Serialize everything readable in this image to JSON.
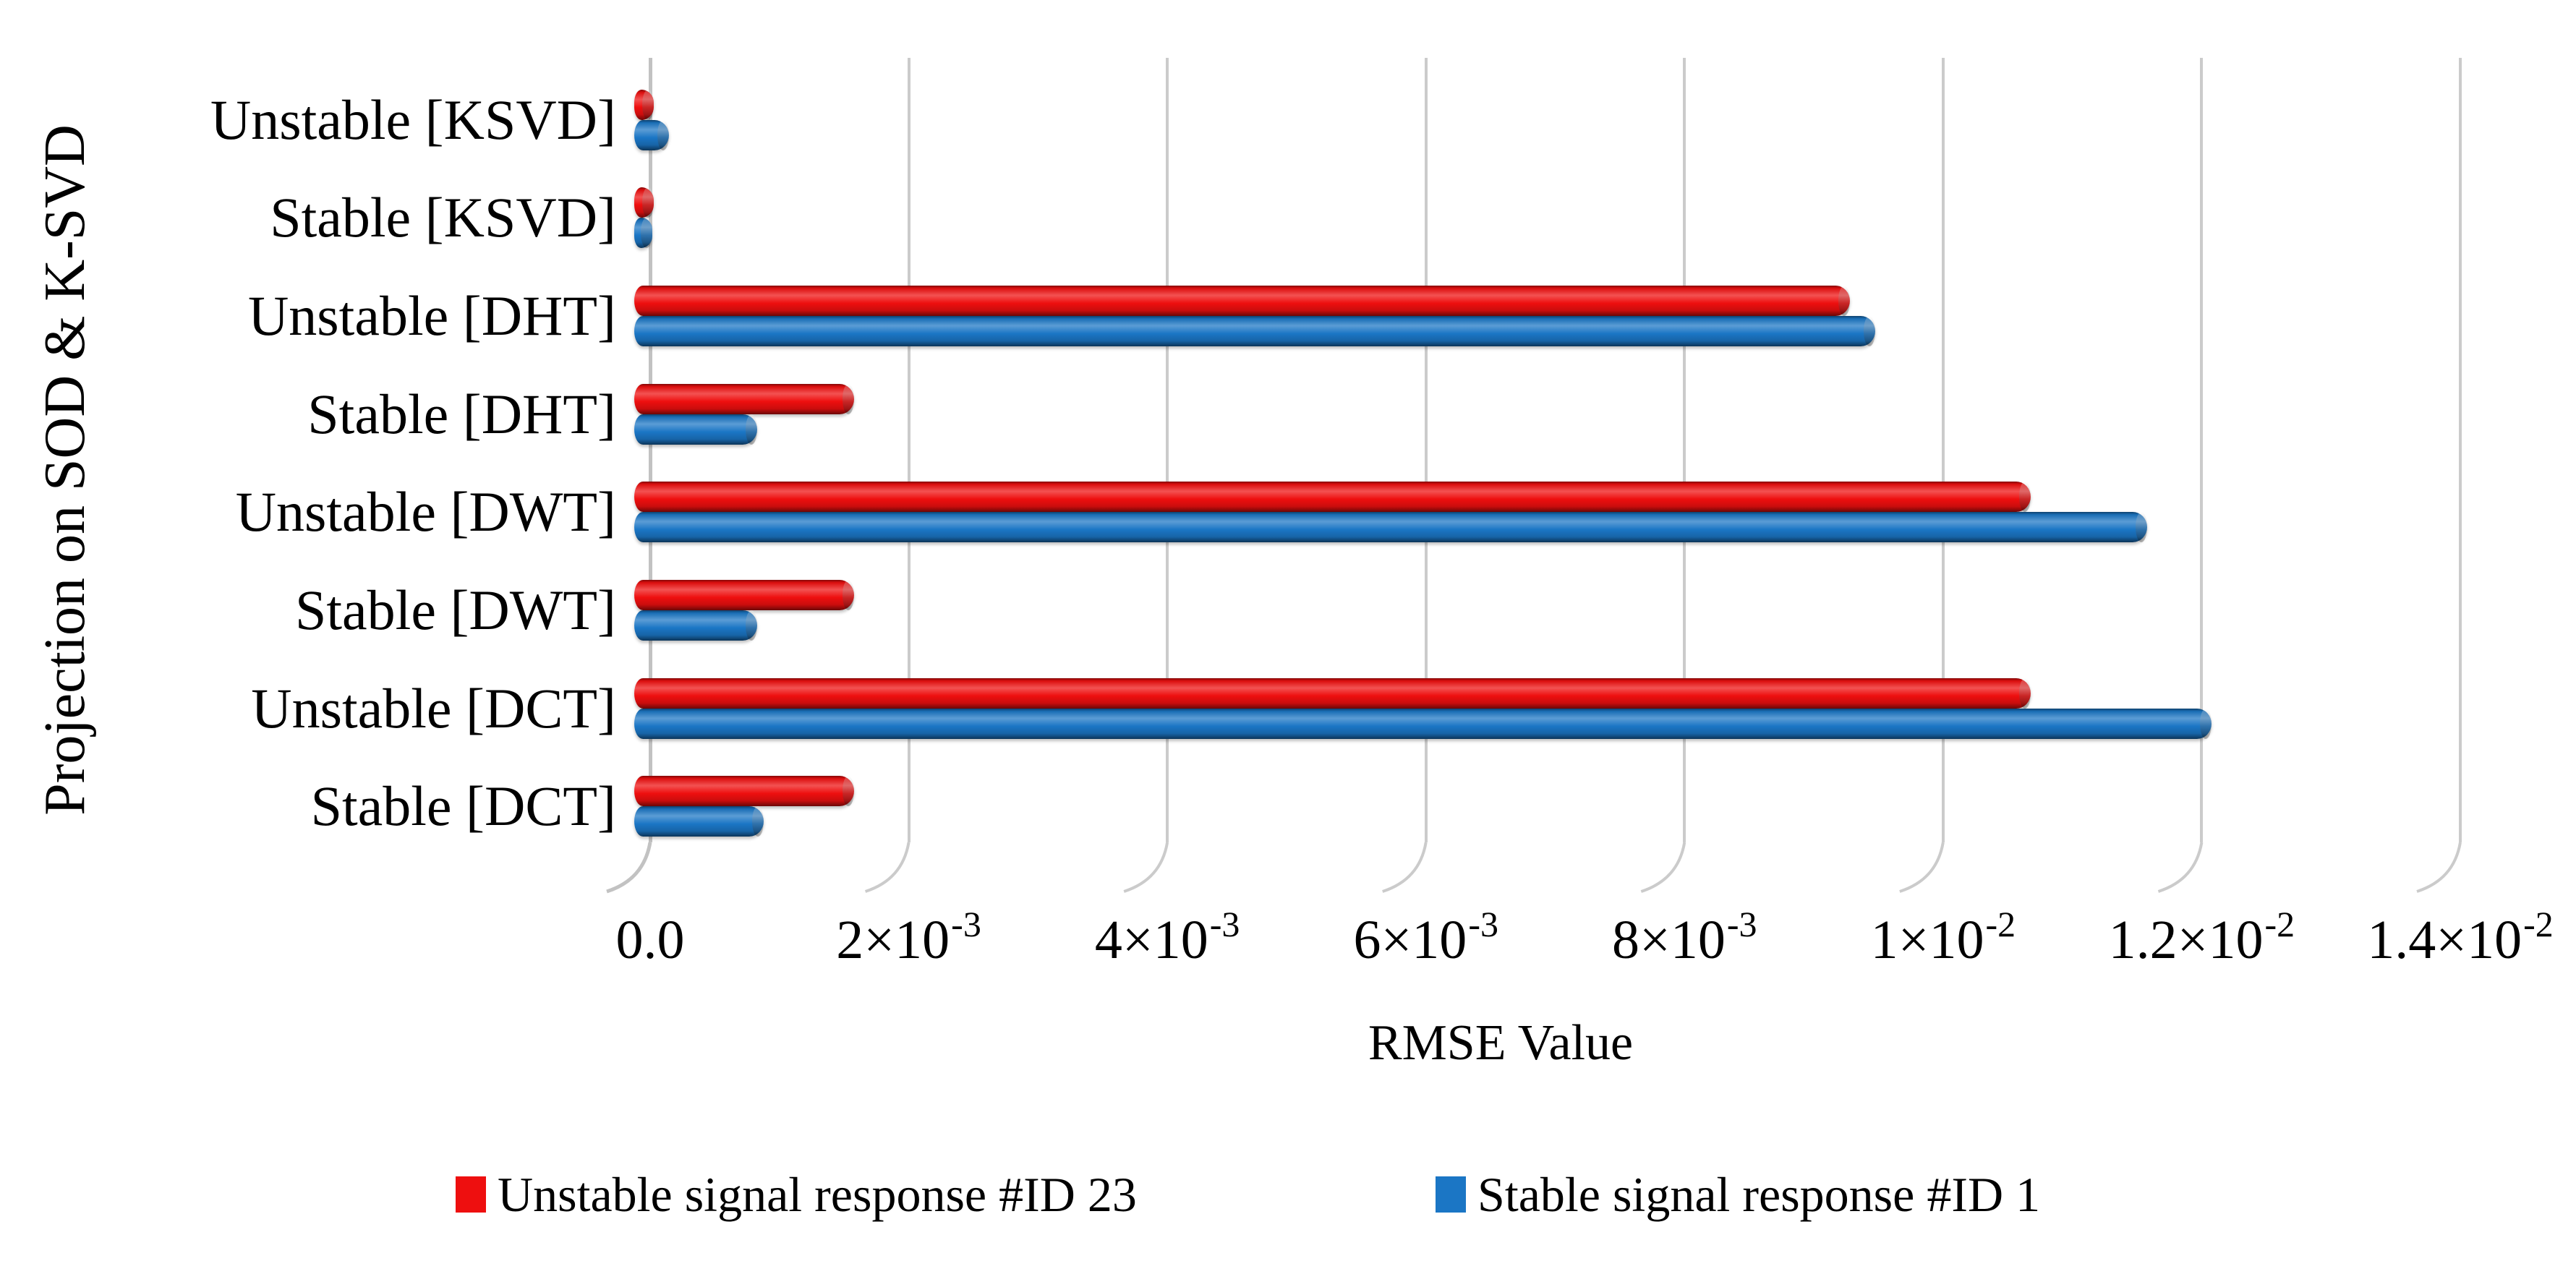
{
  "chart_data": {
    "type": "bar",
    "orientation": "horizontal",
    "title": "",
    "xlabel": "RMSE Value",
    "ylabel": "Projection on SOD & K-SVD",
    "categories_order": "top-to-bottom",
    "categories": [
      "Unstable [KSVD]",
      "Stable [KSVD]",
      "Unstable [DHT]",
      "Stable [DHT]",
      "Unstable [DWT]",
      "Stable [DWT]",
      "Unstable [DCT]",
      "Stable [DCT]"
    ],
    "series": [
      {
        "name": "Unstable signal response #ID 23",
        "color": "#ee0f0f",
        "values": [
          5e-05,
          5e-05,
          0.0093,
          0.0016,
          0.0107,
          0.0016,
          0.0107,
          0.0016
        ]
      },
      {
        "name": "Stable signal response #ID 1",
        "color": "#1b76c5",
        "values": [
          0.00017,
          4e-05,
          0.0095,
          0.00085,
          0.0116,
          0.00085,
          0.0121,
          0.0009
        ]
      }
    ],
    "xlim": [
      0,
      0.014
    ],
    "xticks": [
      {
        "value": 0.0,
        "base": "0.0",
        "sup": ""
      },
      {
        "value": 0.002,
        "base": "2×10",
        "sup": "-3"
      },
      {
        "value": 0.004,
        "base": "4×10",
        "sup": "-3"
      },
      {
        "value": 0.006,
        "base": "6×10",
        "sup": "-3"
      },
      {
        "value": 0.008,
        "base": "8×10",
        "sup": "-3"
      },
      {
        "value": 0.01,
        "base": "1×10",
        "sup": "-2"
      },
      {
        "value": 0.012,
        "base": "1.2×10",
        "sup": "-2"
      },
      {
        "value": 0.014,
        "base": "1.4×10",
        "sup": "-2"
      }
    ],
    "grid": true,
    "gridline_color": "#cbcbcb",
    "background": "#ffffff",
    "legend_position": "bottom"
  }
}
